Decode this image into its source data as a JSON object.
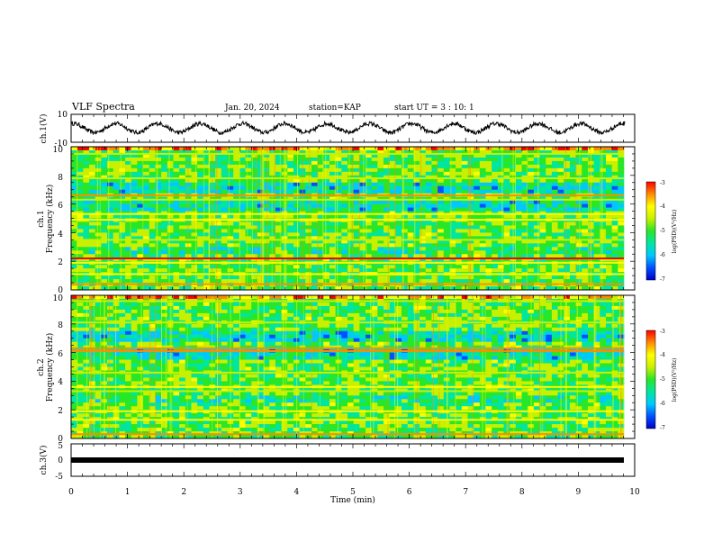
{
  "header": {
    "title": "VLF Spectra",
    "date": "Jan. 20, 2024",
    "station": "station=KAP",
    "start": "start UT =  3 : 10: 1"
  },
  "chart_data": [
    {
      "type": "line",
      "panel": "ch1-waveform",
      "ylabel": "ch.1(V)",
      "ylim": [
        -10,
        10
      ],
      "yticks": [
        "10",
        "-10"
      ],
      "x_range_min": [
        0,
        10
      ],
      "data_end_min": 9.83,
      "description_values": {
        "period_min": 0.75,
        "amplitude_v": 3.2,
        "offset_v": 0.2
      }
    },
    {
      "type": "heatmap",
      "panel": "ch1-spectrogram",
      "ylabel": "ch.1",
      "ylabel2": "Frequency (kHz)",
      "ylim_khz": [
        0,
        10
      ],
      "yticks": [
        "0",
        "2",
        "4",
        "6",
        "8",
        "10"
      ],
      "bands_khz": [
        {
          "f": 0.4,
          "level": -3.5
        },
        {
          "f": 1.1,
          "level": -4.2
        },
        {
          "f": 1.9,
          "level": -4.0
        },
        {
          "f": 2.2,
          "level": -3.4
        },
        {
          "f": 3.5,
          "level": -4.4
        },
        {
          "f": 4.9,
          "level": -4.3
        },
        {
          "f": 5.3,
          "level": -4.1
        },
        {
          "f": 6.3,
          "level": -4.5
        },
        {
          "f": 6.6,
          "level": -3.6
        },
        {
          "f": 7.8,
          "level": -4.5
        },
        {
          "f": 9.5,
          "level": -4.6
        }
      ],
      "colorbar": {
        "label": "log(PSD)(V²/Hz)",
        "ticks": [
          "-3",
          "-4",
          "-5",
          "-6",
          "-7"
        ],
        "range": [
          -7,
          -3
        ]
      }
    },
    {
      "type": "heatmap",
      "panel": "ch2-spectrogram",
      "ylabel": "ch.2",
      "ylabel2": "Frequency (kHz)",
      "ylim_khz": [
        0,
        10
      ],
      "yticks": [
        "0",
        "2",
        "4",
        "6",
        "8",
        "10"
      ],
      "bands_khz": [
        {
          "f": 0.3,
          "level": -3.6
        },
        {
          "f": 1.3,
          "level": -4.2
        },
        {
          "f": 1.9,
          "level": -4.3
        },
        {
          "f": 3.3,
          "level": -4.4
        },
        {
          "f": 3.6,
          "level": -4.3
        },
        {
          "f": 4.6,
          "level": -4.4
        },
        {
          "f": 6.1,
          "level": -3.8
        },
        {
          "f": 6.3,
          "level": -3.5
        },
        {
          "f": 8.1,
          "level": -4.6
        },
        {
          "f": 9.6,
          "level": -4.5
        }
      ],
      "colorbar": {
        "label": "log(PSD)(V²/Hz)",
        "ticks": [
          "-3",
          "-4",
          "-5",
          "-6",
          "-7"
        ],
        "range": [
          -7,
          -3
        ]
      }
    },
    {
      "type": "line",
      "panel": "ch3-signal",
      "ylabel": "ch.3(V)",
      "ylim": [
        -5,
        5
      ],
      "yticks": [
        "5",
        "0",
        "-5"
      ],
      "value_v": 0,
      "xlabel": "Time (min)",
      "xticks": [
        "0",
        "1",
        "2",
        "3",
        "4",
        "5",
        "6",
        "7",
        "8",
        "9",
        "10"
      ]
    }
  ],
  "colors": {
    "colormap": [
      "#0000c8",
      "#0050ff",
      "#00c8ff",
      "#00e6a0",
      "#28e628",
      "#c8f000",
      "#ffff00",
      "#ff8c00",
      "#ff0000"
    ],
    "axis": "#000000"
  }
}
